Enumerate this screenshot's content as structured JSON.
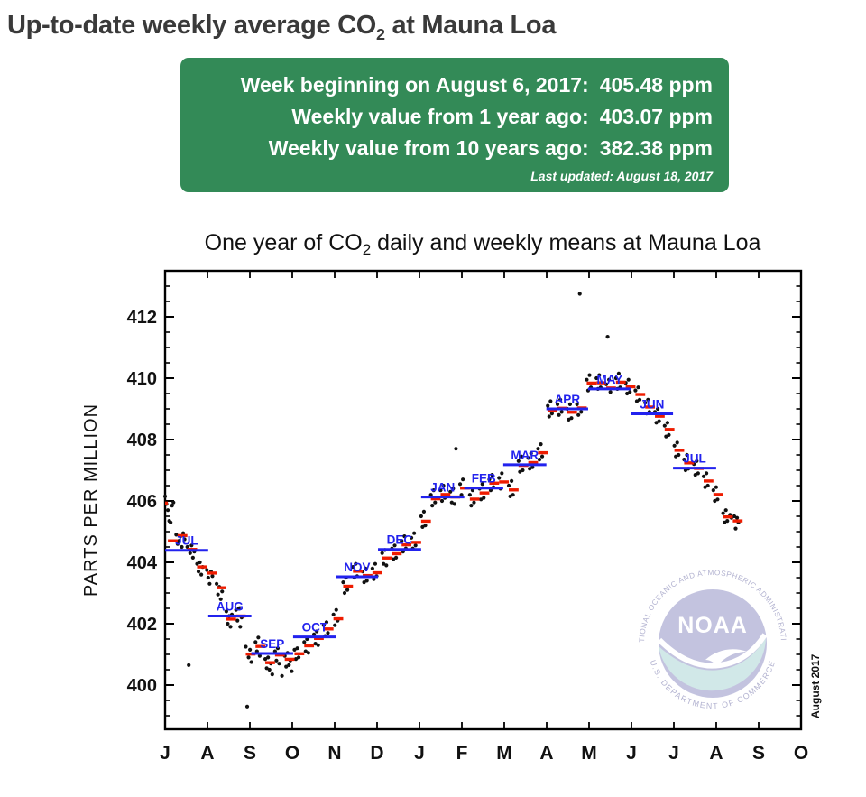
{
  "header": {
    "title_pre": "Up-to-date weekly average CO",
    "title_sub": "2",
    "title_post": " at Mauna Loa"
  },
  "info_box": {
    "rows": [
      {
        "label": "Week beginning on August 6, 2017:",
        "value": "405.48 ppm"
      },
      {
        "label": "Weekly value from 1 year ago:",
        "value": "403.07 ppm"
      },
      {
        "label": "Weekly value from 10 years ago:",
        "value": "382.38 ppm"
      }
    ],
    "last_updated": "Last updated: August 18, 2017"
  },
  "colors": {
    "box_green": "#338a57",
    "daily_dot": "#111111",
    "weekly_mean": "#ee1c00",
    "monthly_mean": "#2222ee",
    "axis": "#000000",
    "logo_lavender": "#b7b7d9",
    "logo_teal": "#c8e3e3",
    "logo_ring_text": "#a2a2c6"
  },
  "chart_data": {
    "type": "scatter",
    "title": {
      "pre": "One year of CO",
      "sub": "2",
      "post": " daily and weekly means at Mauna Loa"
    },
    "ylabel": "PARTS PER MILLION",
    "annotation": "August 2017",
    "x_tick_labels": [
      "J",
      "A",
      "S",
      "O",
      "N",
      "D",
      "J",
      "F",
      "M",
      "A",
      "M",
      "J",
      "J",
      "A",
      "S",
      "O"
    ],
    "x_range_days": 457,
    "ylim": [
      398.6,
      413.5
    ],
    "y_major_ticks": [
      400,
      402,
      404,
      406,
      408,
      410,
      412
    ],
    "y_minor_step": 0.5,
    "grid": false,
    "legend": "none",
    "watermark": {
      "center": "NOAA",
      "ring_top": "NATIONAL OCEANIC AND ATMOSPHERIC ADMINISTRATION",
      "ring_bottom": "U.S. DEPARTMENT OF COMMERCE"
    },
    "monthly_means": [
      {
        "label": "JUL",
        "start": 0,
        "end": 31,
        "value": 404.39
      },
      {
        "label": "AUG",
        "start": 31,
        "end": 62,
        "value": 402.25
      },
      {
        "label": "SEP",
        "start": 62,
        "end": 92,
        "value": 401.03
      },
      {
        "label": "OCT",
        "start": 92,
        "end": 123,
        "value": 401.57
      },
      {
        "label": "NOV",
        "start": 123,
        "end": 153,
        "value": 403.53
      },
      {
        "label": "DEC",
        "start": 153,
        "end": 184,
        "value": 404.42
      },
      {
        "label": "JAN",
        "start": 184,
        "end": 215,
        "value": 406.13
      },
      {
        "label": "FEB",
        "start": 215,
        "end": 243,
        "value": 406.42
      },
      {
        "label": "MAR",
        "start": 243,
        "end": 274,
        "value": 407.18
      },
      {
        "label": "APR",
        "start": 274,
        "end": 304,
        "value": 409.0
      },
      {
        "label": "MAY",
        "start": 304,
        "end": 335,
        "value": 409.65
      },
      {
        "label": "JUN",
        "start": 335,
        "end": 365,
        "value": 408.84
      },
      {
        "label": "JUL",
        "start": 365,
        "end": 396,
        "value": 407.07
      }
    ],
    "weekly_means": [
      [
        -5,
        405.93
      ],
      [
        2,
        404.7
      ],
      [
        9,
        404.87
      ],
      [
        16,
        404.42
      ],
      [
        23,
        403.85
      ],
      [
        30,
        403.65
      ],
      [
        37,
        403.17
      ],
      [
        44,
        402.15
      ],
      [
        51,
        402.25
      ],
      [
        58,
        401.01
      ],
      [
        65,
        401.26
      ],
      [
        72,
        400.73
      ],
      [
        79,
        400.98
      ],
      [
        86,
        400.84
      ],
      [
        93,
        401.02
      ],
      [
        100,
        401.28
      ],
      [
        107,
        401.52
      ],
      [
        114,
        401.83
      ],
      [
        121,
        402.16
      ],
      [
        128,
        403.22
      ],
      [
        135,
        403.71
      ],
      [
        142,
        403.57
      ],
      [
        149,
        403.66
      ],
      [
        156,
        404.14
      ],
      [
        163,
        404.28
      ],
      [
        170,
        404.57
      ],
      [
        177,
        404.65
      ],
      [
        184,
        405.34
      ],
      [
        191,
        406.07
      ],
      [
        198,
        406.21
      ],
      [
        205,
        406.13
      ],
      [
        212,
        406.42
      ],
      [
        219,
        406.06
      ],
      [
        226,
        406.26
      ],
      [
        233,
        406.58
      ],
      [
        240,
        406.62
      ],
      [
        247,
        406.36
      ],
      [
        254,
        407.16
      ],
      [
        261,
        407.25
      ],
      [
        268,
        407.57
      ],
      [
        275,
        408.95
      ],
      [
        282,
        409.02
      ],
      [
        289,
        408.89
      ],
      [
        296,
        409.03
      ],
      [
        303,
        409.84
      ],
      [
        310,
        409.85
      ],
      [
        317,
        409.68
      ],
      [
        324,
        409.87
      ],
      [
        331,
        409.72
      ],
      [
        338,
        409.47
      ],
      [
        345,
        409.06
      ],
      [
        352,
        408.76
      ],
      [
        359,
        408.33
      ],
      [
        366,
        407.65
      ],
      [
        373,
        407.24
      ],
      [
        380,
        407.06
      ],
      [
        387,
        406.65
      ],
      [
        394,
        406.21
      ],
      [
        401,
        405.48
      ],
      [
        408,
        405.35
      ]
    ],
    "daily_means": [
      [
        0,
        406.15
      ],
      [
        1,
        405.9
      ],
      [
        2,
        405.7
      ],
      [
        3,
        405.35
      ],
      [
        4,
        405.3
      ],
      [
        5,
        405.85
      ],
      [
        6,
        405.95
      ],
      [
        8,
        404.9
      ],
      [
        9,
        404.6
      ],
      [
        10,
        404.7
      ],
      [
        11,
        404.85
      ],
      [
        12,
        404.5
      ],
      [
        13,
        404.95
      ],
      [
        14,
        404.75
      ],
      [
        16,
        404.5
      ],
      [
        17,
        400.65
      ],
      [
        18,
        404.3
      ],
      [
        19,
        404.55
      ],
      [
        20,
        404.15
      ],
      [
        21,
        404.35
      ],
      [
        23,
        403.95
      ],
      [
        24,
        403.7
      ],
      [
        25,
        404.0
      ],
      [
        26,
        403.6
      ],
      [
        27,
        403.85
      ],
      [
        30,
        403.75
      ],
      [
        31,
        403.5
      ],
      [
        32,
        403.3
      ],
      [
        33,
        403.7
      ],
      [
        34,
        403.55
      ],
      [
        37,
        403.3
      ],
      [
        38,
        402.95
      ],
      [
        39,
        403.2
      ],
      [
        40,
        402.8
      ],
      [
        41,
        403.05
      ],
      [
        44,
        402.4
      ],
      [
        45,
        402.0
      ],
      [
        46,
        402.25
      ],
      [
        47,
        401.9
      ],
      [
        48,
        402.3
      ],
      [
        51,
        402.45
      ],
      [
        52,
        402.1
      ],
      [
        53,
        402.5
      ],
      [
        54,
        401.9
      ],
      [
        55,
        402.2
      ],
      [
        58,
        401.25
      ],
      [
        59,
        399.3
      ],
      [
        60,
        400.9
      ],
      [
        61,
        401.15
      ],
      [
        62,
        400.75
      ],
      [
        65,
        401.4
      ],
      [
        66,
        401.1
      ],
      [
        67,
        401.55
      ],
      [
        68,
        400.95
      ],
      [
        72,
        400.85
      ],
      [
        73,
        400.55
      ],
      [
        74,
        400.9
      ],
      [
        75,
        400.5
      ],
      [
        76,
        400.7
      ],
      [
        77,
        400.35
      ],
      [
        79,
        401.1
      ],
      [
        80,
        400.8
      ],
      [
        81,
        401.2
      ],
      [
        82,
        400.7
      ],
      [
        84,
        400.3
      ],
      [
        86,
        400.95
      ],
      [
        87,
        400.6
      ],
      [
        88,
        401.05
      ],
      [
        89,
        400.65
      ],
      [
        90,
        400.8
      ],
      [
        91,
        400.45
      ],
      [
        93,
        401.15
      ],
      [
        94,
        400.85
      ],
      [
        95,
        401.2
      ],
      [
        96,
        400.9
      ],
      [
        100,
        401.4
      ],
      [
        101,
        401.1
      ],
      [
        102,
        401.5
      ],
      [
        103,
        401.05
      ],
      [
        107,
        401.65
      ],
      [
        108,
        401.35
      ],
      [
        109,
        401.75
      ],
      [
        110,
        401.3
      ],
      [
        114,
        401.95
      ],
      [
        115,
        401.6
      ],
      [
        116,
        402.05
      ],
      [
        117,
        401.7
      ],
      [
        121,
        402.3
      ],
      [
        122,
        401.95
      ],
      [
        123,
        402.45
      ],
      [
        124,
        402.1
      ],
      [
        128,
        403.35
      ],
      [
        129,
        403.0
      ],
      [
        130,
        403.5
      ],
      [
        131,
        403.1
      ],
      [
        135,
        403.85
      ],
      [
        136,
        403.5
      ],
      [
        137,
        403.95
      ],
      [
        138,
        403.55
      ],
      [
        142,
        403.7
      ],
      [
        143,
        403.35
      ],
      [
        144,
        403.8
      ],
      [
        145,
        403.4
      ],
      [
        149,
        403.8
      ],
      [
        150,
        403.45
      ],
      [
        151,
        403.95
      ],
      [
        152,
        403.55
      ],
      [
        156,
        404.3
      ],
      [
        157,
        403.95
      ],
      [
        158,
        404.4
      ],
      [
        159,
        403.9
      ],
      [
        163,
        404.45
      ],
      [
        164,
        404.1
      ],
      [
        165,
        404.55
      ],
      [
        166,
        404.15
      ],
      [
        170,
        404.7
      ],
      [
        171,
        404.35
      ],
      [
        172,
        404.85
      ],
      [
        173,
        404.45
      ],
      [
        177,
        404.8
      ],
      [
        178,
        404.45
      ],
      [
        179,
        404.95
      ],
      [
        180,
        404.55
      ],
      [
        184,
        405.5
      ],
      [
        185,
        405.15
      ],
      [
        186,
        405.65
      ],
      [
        187,
        405.2
      ],
      [
        191,
        406.2
      ],
      [
        192,
        405.85
      ],
      [
        193,
        406.35
      ],
      [
        194,
        405.95
      ],
      [
        198,
        406.35
      ],
      [
        199,
        406.0
      ],
      [
        200,
        406.5
      ],
      [
        201,
        406.1
      ],
      [
        205,
        406.3
      ],
      [
        206,
        405.95
      ],
      [
        207,
        406.4
      ],
      [
        208,
        405.9
      ],
      [
        209,
        407.7
      ],
      [
        212,
        406.55
      ],
      [
        213,
        406.2
      ],
      [
        214,
        406.7
      ],
      [
        219,
        406.2
      ],
      [
        220,
        405.85
      ],
      [
        221,
        406.35
      ],
      [
        222,
        405.95
      ],
      [
        226,
        406.4
      ],
      [
        227,
        406.05
      ],
      [
        228,
        406.55
      ],
      [
        229,
        406.1
      ],
      [
        233,
        406.7
      ],
      [
        234,
        406.35
      ],
      [
        235,
        406.85
      ],
      [
        236,
        406.45
      ],
      [
        240,
        406.75
      ],
      [
        241,
        406.4
      ],
      [
        242,
        406.9
      ],
      [
        247,
        406.5
      ],
      [
        248,
        406.15
      ],
      [
        249,
        406.65
      ],
      [
        250,
        406.2
      ],
      [
        254,
        407.3
      ],
      [
        255,
        406.95
      ],
      [
        256,
        407.45
      ],
      [
        257,
        407.0
      ],
      [
        261,
        407.4
      ],
      [
        262,
        407.05
      ],
      [
        263,
        407.55
      ],
      [
        264,
        407.1
      ],
      [
        268,
        407.7
      ],
      [
        269,
        407.35
      ],
      [
        270,
        407.85
      ],
      [
        271,
        407.45
      ],
      [
        275,
        409.1
      ],
      [
        276,
        408.75
      ],
      [
        277,
        409.25
      ],
      [
        278,
        408.85
      ],
      [
        282,
        409.15
      ],
      [
        283,
        408.8
      ],
      [
        284,
        409.3
      ],
      [
        285,
        408.9
      ],
      [
        289,
        409.0
      ],
      [
        290,
        408.65
      ],
      [
        291,
        409.15
      ],
      [
        292,
        408.7
      ],
      [
        296,
        409.15
      ],
      [
        297,
        408.8
      ],
      [
        298,
        412.75
      ],
      [
        299,
        408.9
      ],
      [
        303,
        409.95
      ],
      [
        304,
        409.6
      ],
      [
        305,
        410.1
      ],
      [
        306,
        409.7
      ],
      [
        310,
        410.0
      ],
      [
        311,
        409.65
      ],
      [
        312,
        410.1
      ],
      [
        313,
        409.7
      ],
      [
        317,
        409.8
      ],
      [
        318,
        411.35
      ],
      [
        319,
        409.95
      ],
      [
        320,
        409.55
      ],
      [
        324,
        410.0
      ],
      [
        325,
        409.65
      ],
      [
        326,
        410.15
      ],
      [
        327,
        409.7
      ],
      [
        331,
        409.85
      ],
      [
        332,
        409.5
      ],
      [
        333,
        409.95
      ],
      [
        334,
        409.55
      ],
      [
        338,
        409.6
      ],
      [
        339,
        409.25
      ],
      [
        340,
        409.7
      ],
      [
        341,
        409.3
      ],
      [
        345,
        409.2
      ],
      [
        346,
        408.85
      ],
      [
        347,
        409.3
      ],
      [
        348,
        408.9
      ],
      [
        352,
        408.9
      ],
      [
        353,
        408.55
      ],
      [
        354,
        409.0
      ],
      [
        355,
        408.6
      ],
      [
        359,
        408.45
      ],
      [
        360,
        408.1
      ],
      [
        361,
        408.55
      ],
      [
        362,
        408.15
      ],
      [
        366,
        407.8
      ],
      [
        367,
        407.45
      ],
      [
        368,
        407.9
      ],
      [
        369,
        407.5
      ],
      [
        373,
        407.35
      ],
      [
        374,
        407.0
      ],
      [
        375,
        407.5
      ],
      [
        376,
        407.05
      ],
      [
        380,
        407.2
      ],
      [
        381,
        406.85
      ],
      [
        382,
        407.3
      ],
      [
        383,
        406.9
      ],
      [
        387,
        406.8
      ],
      [
        388,
        406.45
      ],
      [
        389,
        406.9
      ],
      [
        390,
        406.5
      ],
      [
        394,
        406.35
      ],
      [
        395,
        406.0
      ],
      [
        396,
        406.45
      ],
      [
        397,
        406.05
      ],
      [
        401,
        405.6
      ],
      [
        402,
        405.3
      ],
      [
        403,
        405.7
      ],
      [
        404,
        405.35
      ],
      [
        406,
        405.55
      ],
      [
        407,
        405.45
      ],
      [
        409,
        405.5
      ],
      [
        410,
        405.1
      ],
      [
        411,
        405.45
      ],
      [
        412,
        405.3
      ]
    ]
  }
}
